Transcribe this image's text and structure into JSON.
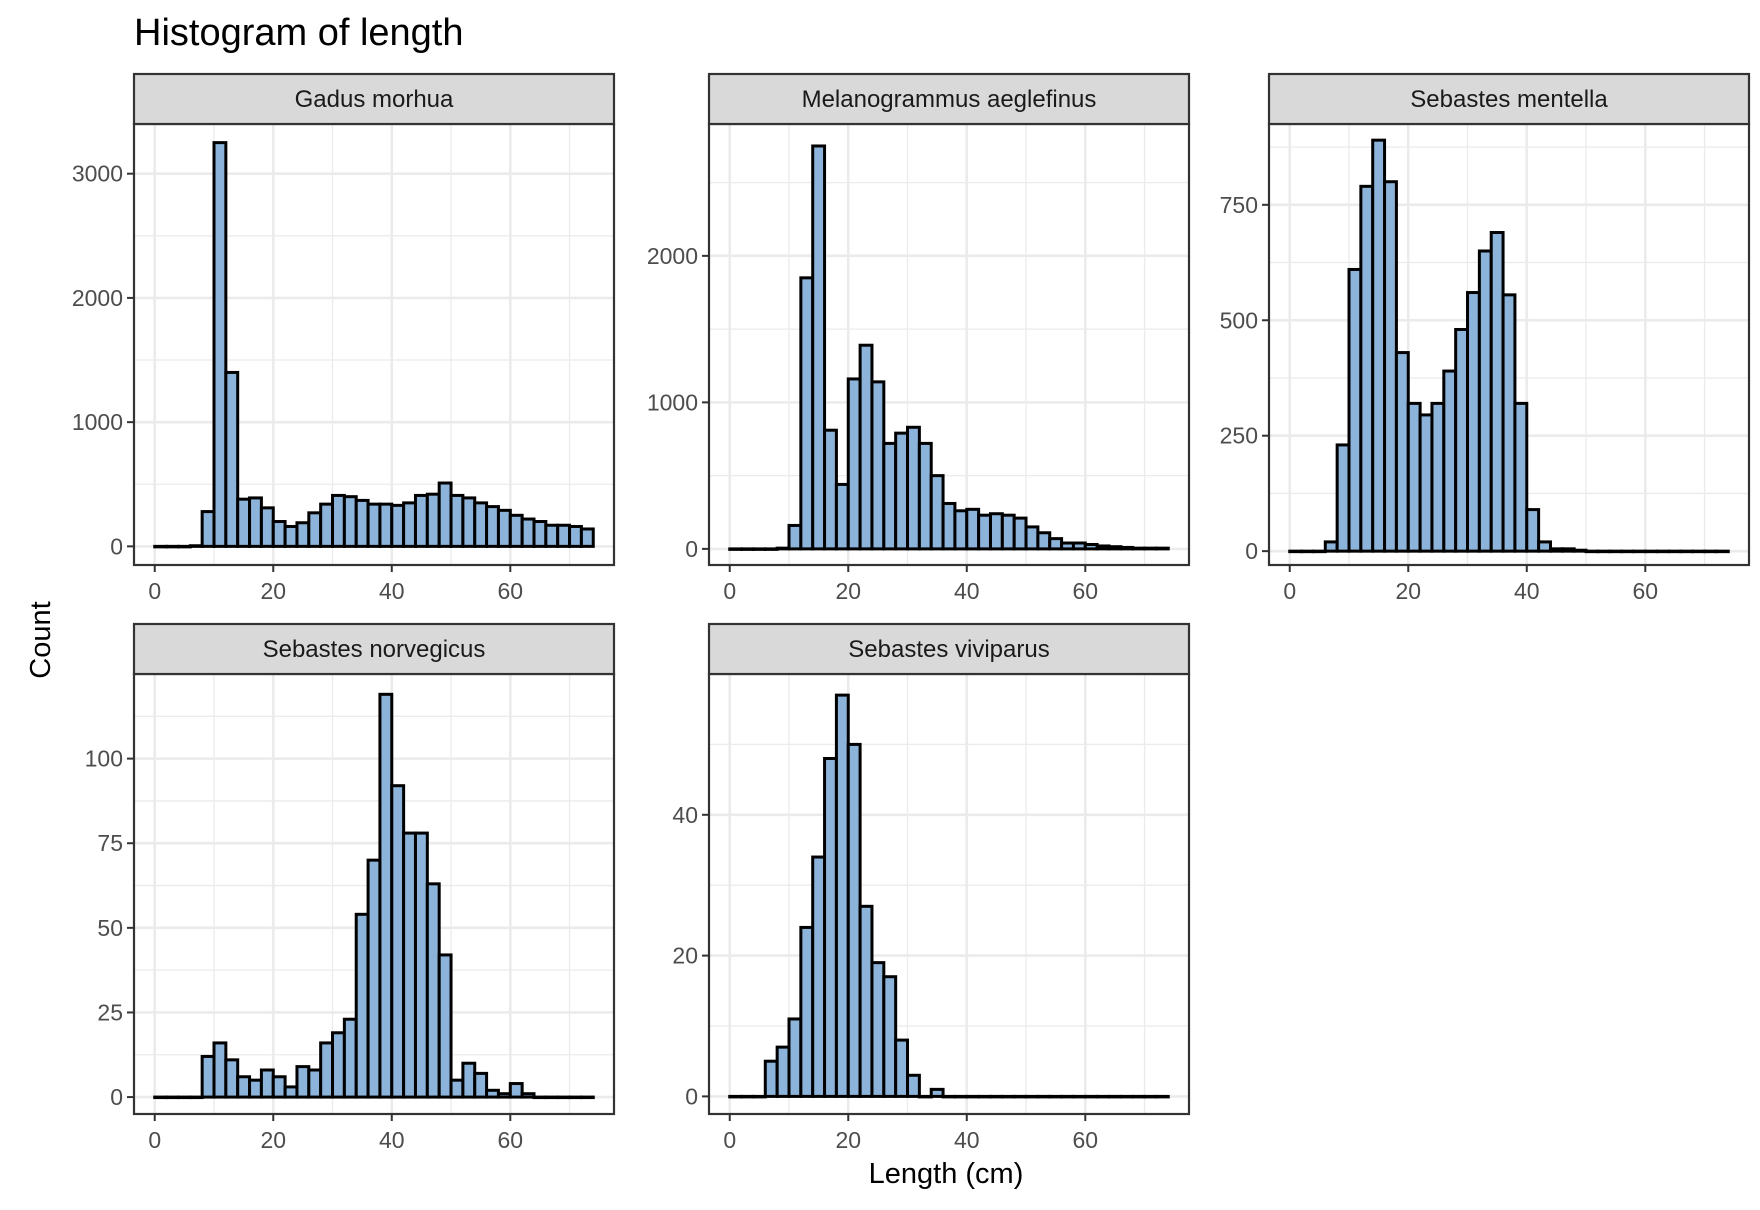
{
  "chart_data": {
    "type": "bar",
    "title": "Histogram of length",
    "xlabel": "Length (cm)",
    "ylabel": "Count",
    "bin_width": 2,
    "bin_starts": [
      0,
      2,
      4,
      6,
      8,
      10,
      12,
      14,
      16,
      18,
      20,
      22,
      24,
      26,
      28,
      30,
      32,
      34,
      36,
      38,
      40,
      42,
      44,
      46,
      48,
      50,
      52,
      54,
      56,
      58,
      60,
      62,
      64,
      66,
      68,
      70,
      72
    ],
    "xlim": [
      -3.5,
      77.5
    ],
    "x_ticks": [
      0,
      20,
      40,
      60
    ],
    "x_tick_labels": [
      "0",
      "20",
      "40",
      "60"
    ],
    "grid": true,
    "colors": {
      "bar_fill": "#8cb3d9",
      "bar_outline": "#000000",
      "strip": "#d9d9d9"
    },
    "panels": [
      {
        "name": "Gadus morhua",
        "ylim": [
          -150,
          3400
        ],
        "y_ticks": [
          0,
          1000,
          2000,
          3000
        ],
        "y_tick_labels": [
          "0",
          "1000",
          "2000",
          "3000"
        ],
        "values": [
          0,
          0,
          0,
          5,
          280,
          3250,
          1400,
          380,
          390,
          310,
          200,
          160,
          190,
          270,
          340,
          410,
          400,
          370,
          340,
          340,
          330,
          350,
          410,
          420,
          510,
          410,
          390,
          350,
          320,
          290,
          250,
          220,
          200,
          170,
          170,
          160,
          140
        ]
      },
      {
        "name": "Melanogrammus aeglefinus",
        "ylim": [
          -110,
          2900
        ],
        "y_ticks": [
          0,
          1000,
          2000
        ],
        "y_tick_labels": [
          "0",
          "1000",
          "2000"
        ],
        "values": [
          0,
          0,
          0,
          0,
          5,
          160,
          1850,
          2750,
          810,
          440,
          1160,
          1390,
          1140,
          720,
          790,
          830,
          720,
          500,
          310,
          260,
          270,
          230,
          240,
          230,
          210,
          150,
          110,
          70,
          40,
          40,
          30,
          20,
          15,
          10,
          5,
          5,
          5
        ]
      },
      {
        "name": "Sebastes mentella",
        "ylim": [
          -30,
          925
        ],
        "y_ticks": [
          0,
          250,
          500,
          750
        ],
        "y_tick_labels": [
          "0",
          "250",
          "500",
          "750"
        ],
        "values": [
          0,
          0,
          0,
          20,
          230,
          610,
          790,
          890,
          800,
          430,
          320,
          295,
          320,
          390,
          480,
          560,
          650,
          690,
          555,
          320,
          90,
          20,
          5,
          5,
          2,
          0,
          0,
          0,
          0,
          0,
          0,
          0,
          0,
          0,
          0,
          0,
          0
        ]
      },
      {
        "name": "Sebastes norvegicus",
        "ylim": [
          -5,
          125
        ],
        "y_ticks": [
          0,
          25,
          50,
          75,
          100
        ],
        "y_tick_labels": [
          "0",
          "25",
          "50",
          "75",
          "100"
        ],
        "values": [
          0,
          0,
          0,
          0,
          12,
          16,
          11,
          6,
          5,
          8,
          6,
          3,
          9,
          8,
          16,
          19,
          23,
          54,
          70,
          119,
          92,
          78,
          78,
          63,
          42,
          5,
          10,
          7,
          2,
          1,
          4,
          1,
          0,
          0,
          0,
          0,
          0
        ]
      },
      {
        "name": "Sebastes viviparus",
        "ylim": [
          -2.5,
          60
        ],
        "y_ticks": [
          0,
          20,
          40
        ],
        "y_tick_labels": [
          "0",
          "20",
          "40"
        ],
        "values": [
          0,
          0,
          0,
          5,
          7,
          11,
          24,
          34,
          48,
          57,
          50,
          27,
          19,
          17,
          8,
          3,
          0,
          1,
          0,
          0,
          0,
          0,
          0,
          0,
          0,
          0,
          0,
          0,
          0,
          0,
          0,
          0,
          0,
          0,
          0,
          0,
          0
        ]
      }
    ]
  }
}
